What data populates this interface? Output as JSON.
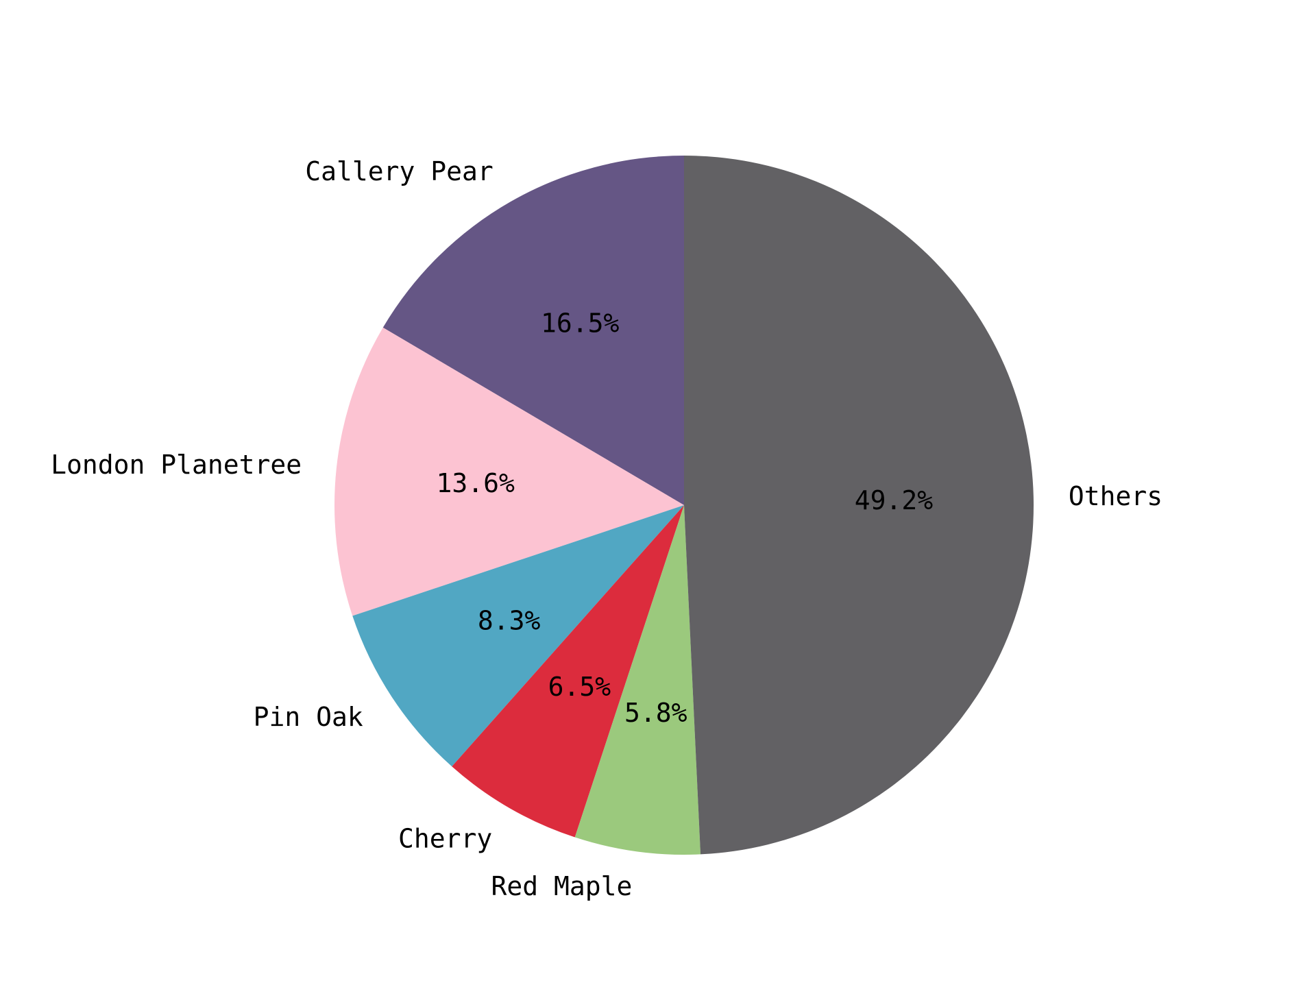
{
  "chart_data": {
    "type": "pie",
    "start_angle_deg": 90,
    "direction": "counterclockwise",
    "slices": [
      {
        "label": "Callery Pear",
        "percent": 16.5,
        "percent_label": "16.5%",
        "color": "#655685"
      },
      {
        "label": "London Planetree",
        "percent": 13.6,
        "percent_label": "13.6%",
        "color": "#fcc3d2"
      },
      {
        "label": "Pin Oak",
        "percent": 8.3,
        "percent_label": "8.3%",
        "color": "#51a7c3"
      },
      {
        "label": "Cherry",
        "percent": 6.5,
        "percent_label": "6.5%",
        "color": "#dc2c3d"
      },
      {
        "label": "Red Maple",
        "percent": 5.8,
        "percent_label": "5.8%",
        "color": "#9bc97d"
      },
      {
        "label": "Others",
        "percent": 49.2,
        "percent_label": "49.2%",
        "color": "#626164"
      }
    ]
  }
}
